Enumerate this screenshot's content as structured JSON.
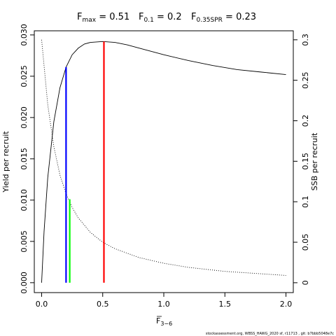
{
  "chart_data": {
    "type": "line",
    "title": {
      "fmax": {
        "label": "F",
        "sub": "max",
        "value": "0.51"
      },
      "f01": {
        "label": "F",
        "sub": "0.1",
        "value": "0.2"
      },
      "fspr": {
        "label": "F",
        "sub": "0.35SPR",
        "value": "0.23"
      }
    },
    "xlabel": {
      "main": "F",
      "sub": "3−6"
    },
    "ylabel_left": "Yield per recruit",
    "ylabel_right": "SSB per recruit",
    "xlim": [
      -0.06,
      2.06
    ],
    "ylim_left": [
      -0.0012,
      0.0305
    ],
    "ylim_right": [
      -0.0122,
      0.3111
    ],
    "x_ticks": [
      "0.0",
      "0.5",
      "1.0",
      "1.5",
      "2.0"
    ],
    "y_left_ticks": [
      "0.000",
      "0.005",
      "0.010",
      "0.015",
      "0.020",
      "0.025",
      "0.030"
    ],
    "y_right_ticks": [
      "0",
      "0.05",
      "0.1",
      "0.15",
      "0.2",
      "0.25",
      "0.3"
    ],
    "series": [
      {
        "style": "solid",
        "axis": "left",
        "x": [
          0,
          0.02,
          0.05,
          0.1,
          0.15,
          0.2,
          0.25,
          0.3,
          0.35,
          0.4,
          0.45,
          0.5,
          0.6,
          0.7,
          0.8,
          1.0,
          1.2,
          1.4,
          1.6,
          1.8,
          2.0
        ],
        "y": [
          0,
          0.0062,
          0.0127,
          0.0195,
          0.0236,
          0.0261,
          0.0276,
          0.0284,
          0.0289,
          0.0291,
          0.02915,
          0.0292,
          0.0291,
          0.0288,
          0.0284,
          0.0276,
          0.0269,
          0.0263,
          0.0258,
          0.0255,
          0.0252
        ]
      },
      {
        "style": "dotted",
        "axis": "right",
        "x": [
          0,
          0.05,
          0.1,
          0.15,
          0.2,
          0.25,
          0.3,
          0.4,
          0.5,
          0.6,
          0.8,
          1.0,
          1.2,
          1.5,
          1.8,
          2.0
        ],
        "y": [
          0.3,
          0.22,
          0.168,
          0.133,
          0.11,
          0.093,
          0.08,
          0.062,
          0.05,
          0.042,
          0.031,
          0.024,
          0.019,
          0.014,
          0.011,
          0.009
        ]
      }
    ],
    "reference_lines": [
      {
        "x": 0.2,
        "y": 0.0261,
        "color": "#0000ff"
      },
      {
        "x": 0.23,
        "y": 0.0101,
        "color": "#00ff00"
      },
      {
        "x": 0.51,
        "y": 0.0292,
        "color": "#ff0000"
      }
    ]
  },
  "footer": "stockassessment.org,  WBSS_HAWG_2020  sf, r11713 , git: b7bbb5048e7c"
}
